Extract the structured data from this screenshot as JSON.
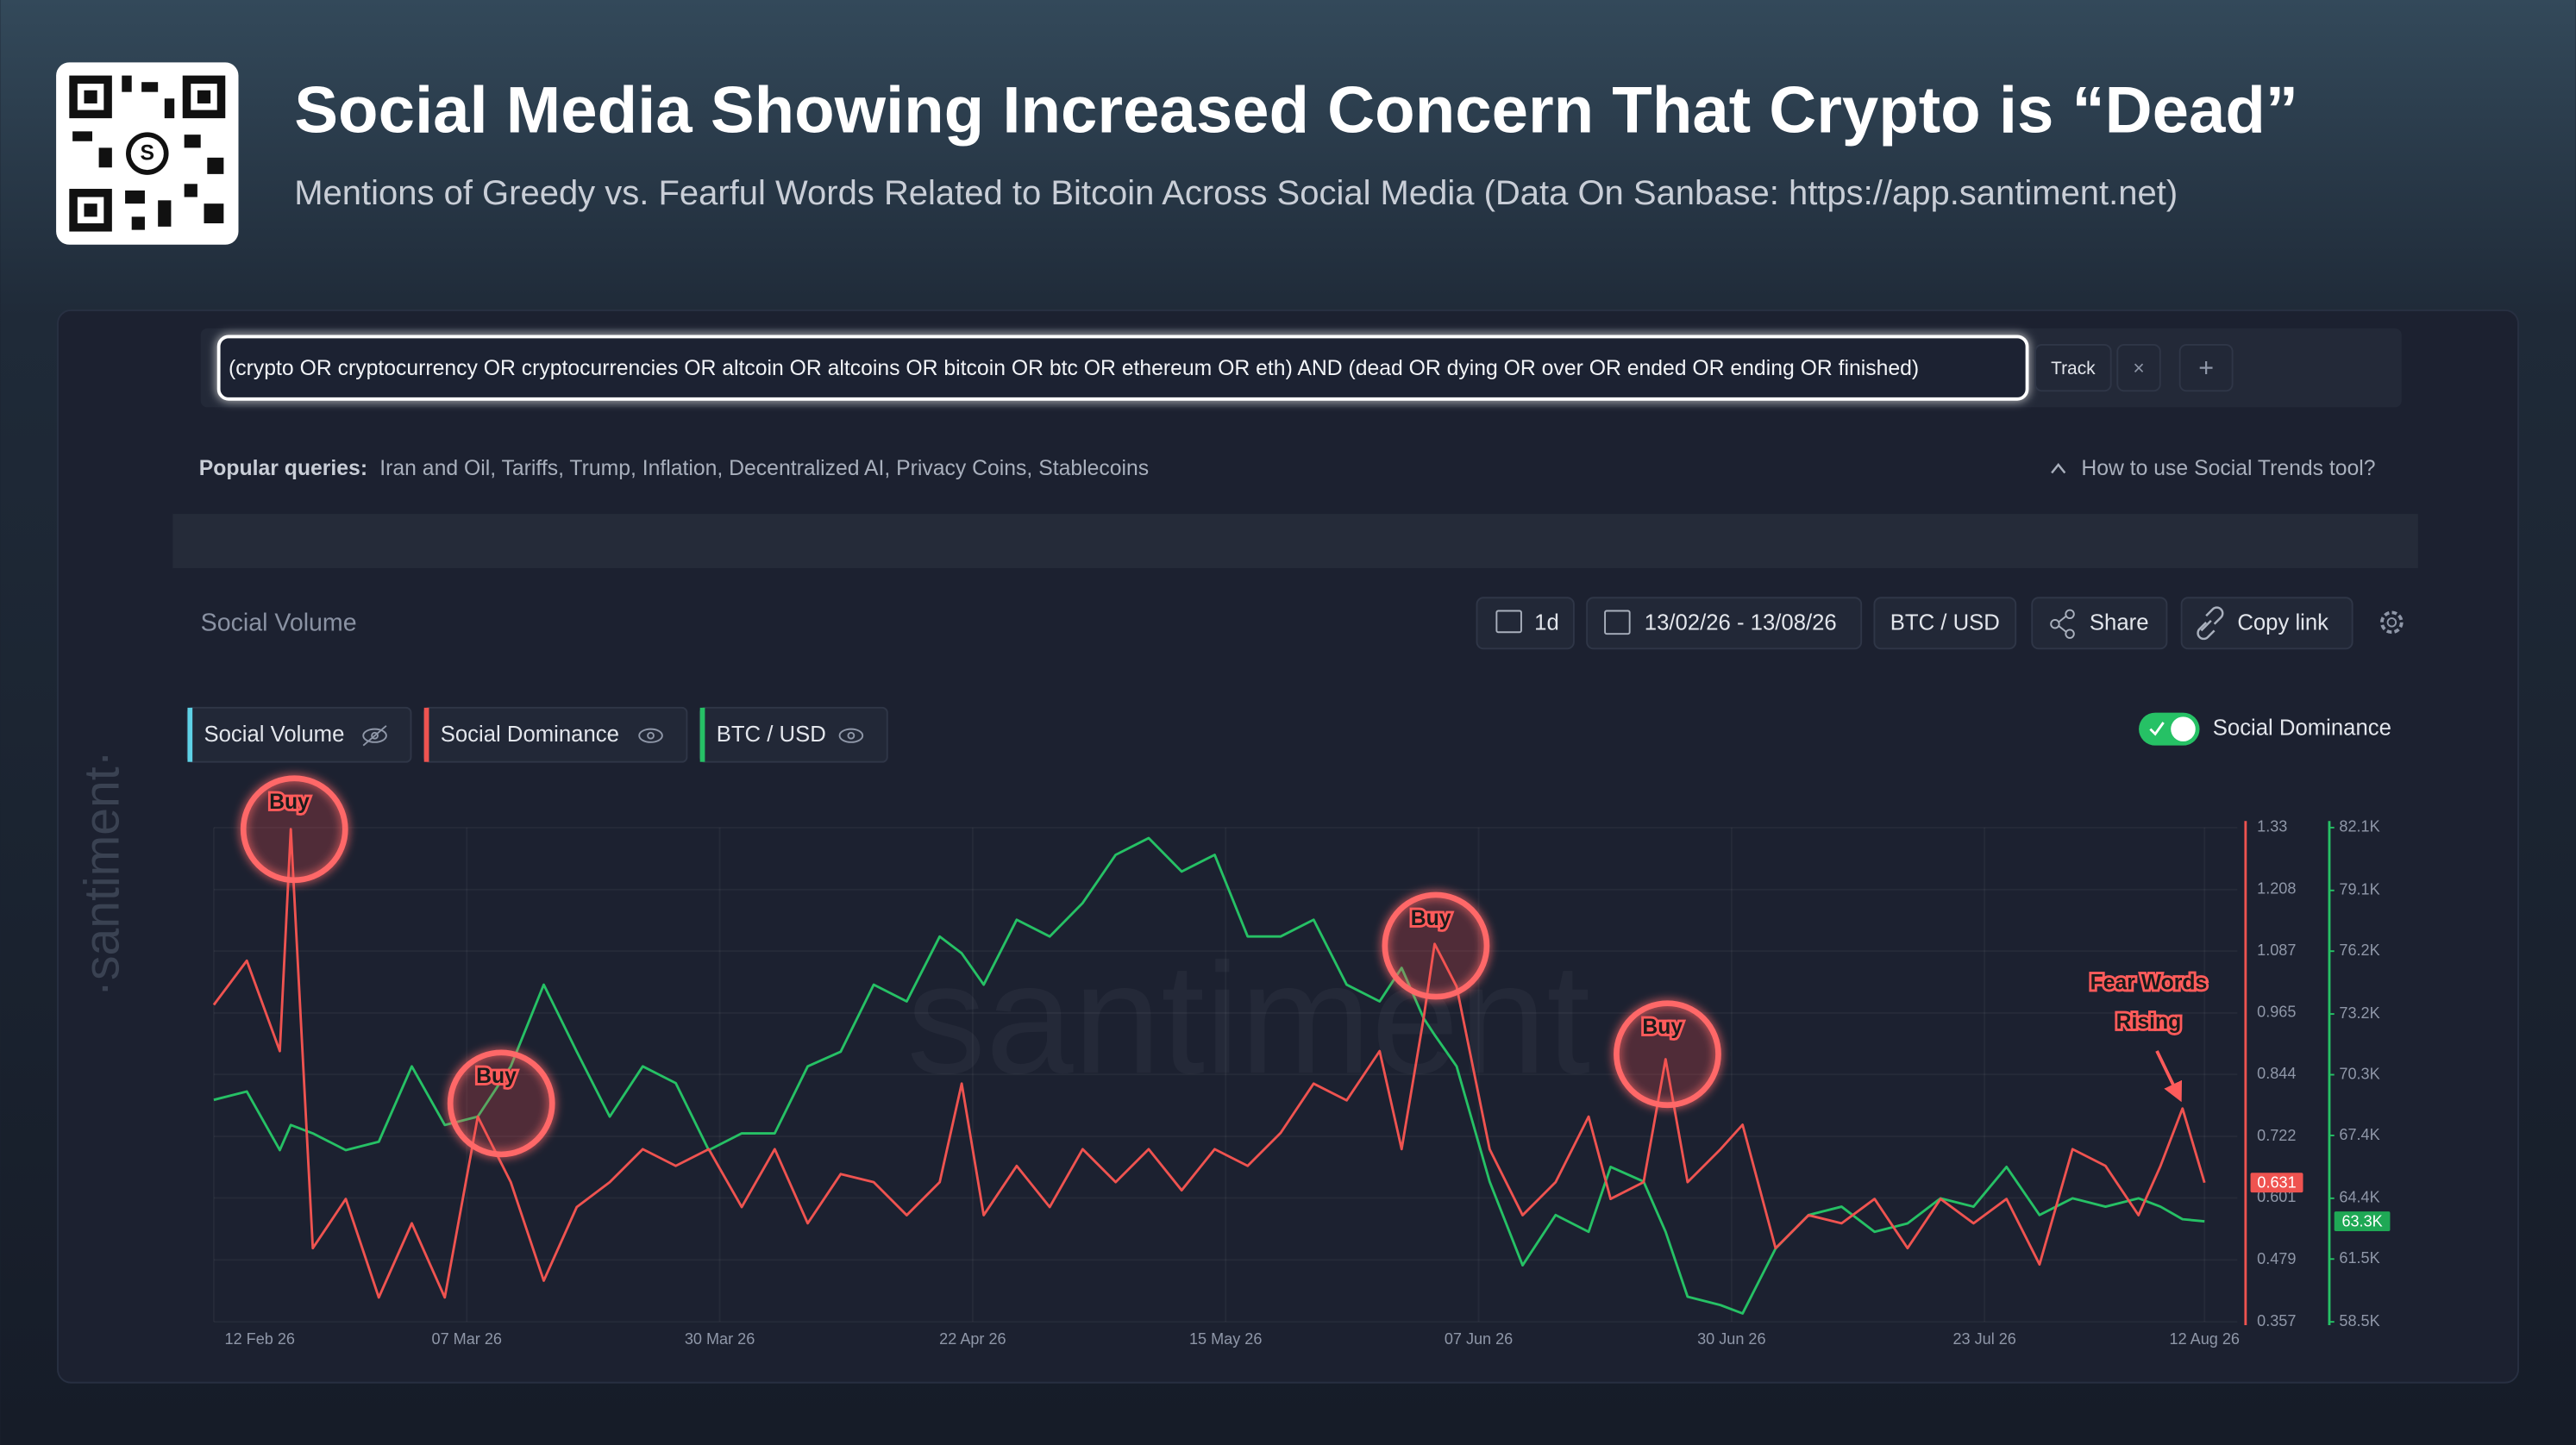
{
  "header": {
    "title": "Social Media Showing Increased Concern That Crypto is “Dead”",
    "subtitle": "Mentions of Greedy vs. Fearful Words Related to Bitcoin Across Social Media (Data On Sanbase: https://app.santiment.net)"
  },
  "search": {
    "query": "(crypto OR cryptocurrency OR cryptocurrencies OR altcoin OR altcoins OR bitcoin OR btc OR ethereum OR eth) AND (dead OR dying OR over OR ended OR ending OR finished)",
    "track": "Track",
    "remove": "×",
    "add": "+"
  },
  "popular": {
    "label": "Popular queries:",
    "items": "Iran and Oil, Tariffs, Trump, Inflation, Decentralized AI, Privacy Coins, Stablecoins"
  },
  "help": "How to use Social Trends tool?",
  "toolbar": {
    "title": "Social Volume",
    "interval": "1d",
    "range": "13/02/26 - 13/08/26",
    "pair": "BTC / USD",
    "share": "Share",
    "copy": "Copy link"
  },
  "metrics": {
    "hidden": "Social Volume",
    "toggle": "Social Dominance"
  },
  "watermark": {
    "side": "·santiment·",
    "center": "santiment"
  },
  "chart_data": {
    "type": "line",
    "x": [
      "2026-02-12",
      "2026-02-15",
      "2026-02-18",
      "2026-02-19",
      "2026-02-21",
      "2026-02-24",
      "2026-02-27",
      "2026-03-02",
      "2026-03-05",
      "2026-03-08",
      "2026-03-11",
      "2026-03-14",
      "2026-03-17",
      "2026-03-20",
      "2026-03-23",
      "2026-03-26",
      "2026-03-29",
      "2026-04-01",
      "2026-04-04",
      "2026-04-07",
      "2026-04-10",
      "2026-04-13",
      "2026-04-16",
      "2026-04-19",
      "2026-04-21",
      "2026-04-23",
      "2026-04-26",
      "2026-04-29",
      "2026-05-02",
      "2026-05-05",
      "2026-05-08",
      "2026-05-11",
      "2026-05-14",
      "2026-05-17",
      "2026-05-20",
      "2026-05-23",
      "2026-05-26",
      "2026-05-29",
      "2026-05-31",
      "2026-06-02",
      "2026-06-03",
      "2026-06-05",
      "2026-06-08",
      "2026-06-11",
      "2026-06-14",
      "2026-06-17",
      "2026-06-19",
      "2026-06-22",
      "2026-06-24",
      "2026-06-26",
      "2026-06-29",
      "2026-07-01",
      "2026-07-04",
      "2026-07-07",
      "2026-07-10",
      "2026-07-13",
      "2026-07-16",
      "2026-07-19",
      "2026-07-22",
      "2026-07-25",
      "2026-07-28",
      "2026-07-31",
      "2026-08-03",
      "2026-08-06",
      "2026-08-08",
      "2026-08-10",
      "2026-08-12"
    ],
    "xlim": [
      "2026-02-12",
      "2026-08-12"
    ],
    "xticks": [
      {
        "value": "2026-02-12",
        "label": "12 Feb 26"
      },
      {
        "value": "2026-03-07",
        "label": "07 Mar 26"
      },
      {
        "value": "2026-03-30",
        "label": "30 Mar 26"
      },
      {
        "value": "2026-04-22",
        "label": "22 Apr 26"
      },
      {
        "value": "2026-05-15",
        "label": "15 May 26"
      },
      {
        "value": "2026-06-07",
        "label": "07 Jun 26"
      },
      {
        "value": "2026-06-30",
        "label": "30 Jun 26"
      },
      {
        "value": "2026-07-23",
        "label": "23 Jul 26"
      },
      {
        "value": "2026-08-12",
        "label": "12 Aug 26"
      }
    ],
    "ylim": [
      0.357,
      1.33
    ],
    "yticks": [
      1.33,
      1.208,
      1.087,
      0.965,
      0.844,
      0.722,
      0.601,
      0.479,
      0.357
    ],
    "y2lim": [
      58500,
      82100
    ],
    "y2ticks": [
      {
        "value": 82100,
        "label": "82.1K"
      },
      {
        "value": 79100,
        "label": "79.1K"
      },
      {
        "value": 76200,
        "label": "76.2K"
      },
      {
        "value": 73200,
        "label": "73.2K"
      },
      {
        "value": 70300,
        "label": "70.3K"
      },
      {
        "value": 67400,
        "label": "67.4K"
      },
      {
        "value": 64400,
        "label": "64.4K"
      },
      {
        "value": 61500,
        "label": "61.5K"
      },
      {
        "value": 58500,
        "label": "58.5K"
      }
    ],
    "grid": true,
    "series": [
      {
        "name": "Social Dominance",
        "color": "#ef5350",
        "values": [
          0.981,
          1.068,
          0.89,
          1.327,
          0.502,
          0.599,
          0.405,
          0.551,
          0.405,
          0.761,
          0.632,
          0.438,
          0.583,
          0.632,
          0.697,
          0.664,
          0.697,
          0.583,
          0.697,
          0.551,
          0.648,
          0.632,
          0.567,
          0.632,
          0.826,
          0.567,
          0.664,
          0.583,
          0.697,
          0.632,
          0.697,
          0.616,
          0.697,
          0.664,
          0.729,
          0.826,
          0.793,
          0.89,
          0.697,
          0.955,
          1.101,
          1.017,
          0.697,
          0.567,
          0.632,
          0.761,
          0.599,
          0.632,
          0.874,
          0.632,
          0.697,
          0.745,
          0.502,
          0.567,
          0.551,
          0.599,
          0.502,
          0.599,
          0.551,
          0.599,
          0.47,
          0.697,
          0.664,
          0.567,
          0.664,
          0.777,
          0.631
        ]
      },
      {
        "name": "BTC / USD",
        "color": "#26c165",
        "axis": "y2",
        "last_value_label": "63.3K",
        "values": [
          69100,
          69500,
          66700,
          67900,
          67500,
          66700,
          67100,
          70700,
          67900,
          68300,
          70700,
          74600,
          71400,
          68300,
          70700,
          69900,
          66700,
          67500,
          67500,
          70700,
          71400,
          74600,
          73800,
          76900,
          76100,
          74600,
          77700,
          76900,
          78500,
          80800,
          81600,
          80000,
          80800,
          76900,
          76900,
          77700,
          74600,
          73800,
          75400,
          73000,
          72200,
          70700,
          65200,
          61200,
          63600,
          62800,
          65900,
          65200,
          62800,
          59700,
          59300,
          58900,
          62000,
          63600,
          64000,
          62800,
          63200,
          64400,
          64000,
          65900,
          63600,
          64400,
          64000,
          64400,
          64000,
          63400,
          63300
        ]
      }
    ],
    "annotations": [
      "Buy",
      "Buy",
      "Buy",
      "Buy",
      "Fear Words",
      "Rising"
    ]
  }
}
